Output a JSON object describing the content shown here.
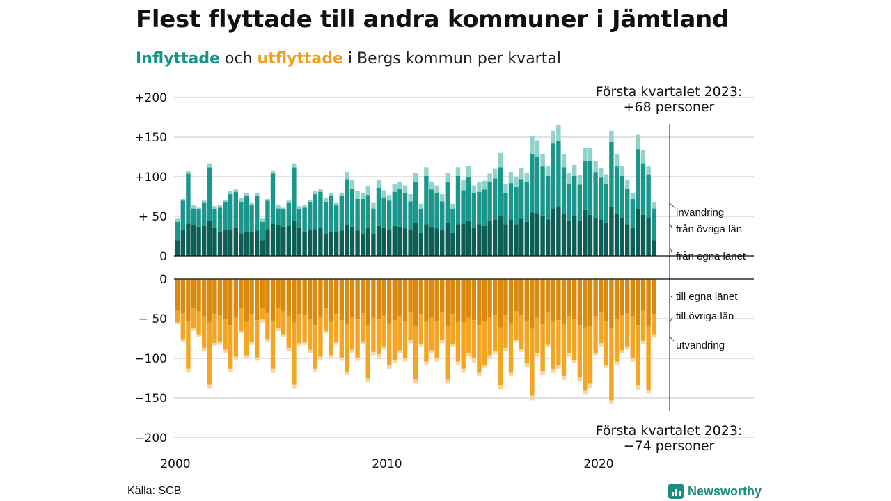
{
  "title": "Flest flyttade till andra kommuner i Jämtland",
  "subtitle": {
    "in_word": "Inflyttade",
    "and_word": "och",
    "out_word": "utflyttade",
    "rest": "i Bergs kommun per kvartal"
  },
  "source": "Källa: SCB",
  "brand": {
    "name": "Newsworthy",
    "icon": "bar-chart-logo-icon"
  },
  "colors": {
    "in_egna": "#0d5e55",
    "in_ovriga": "#1a968a",
    "in_invandring": "#8fd3cb",
    "out_egna": "#d98a0f",
    "out_ovriga": "#f4a524",
    "out_utvandring": "#f8d7a3",
    "grid": "#d9d9d9"
  },
  "chart_data": {
    "type": "bar",
    "stacked": true,
    "x_start": "2000 Q1",
    "x_ticks": [
      {
        "year": 2000,
        "label": "2000"
      },
      {
        "year": 2010,
        "label": "2010"
      },
      {
        "year": 2020,
        "label": "2020"
      }
    ],
    "upper_panel": {
      "ylim": [
        0,
        200
      ],
      "ticks": [
        {
          "v": 200,
          "label": "+200"
        },
        {
          "v": 150,
          "label": "+150"
        },
        {
          "v": 100,
          "label": "+100"
        },
        {
          "v": 50,
          "label": "+ 50"
        },
        {
          "v": 0,
          "label": "0"
        }
      ],
      "series_labels": [
        "invandring",
        "från övriga län",
        "från egna länet"
      ],
      "annotation": [
        "Första kvartalet 2023:",
        "+68 personer"
      ],
      "totals": [
        47,
        72,
        107,
        64,
        61,
        70,
        117,
        63,
        64,
        71,
        82,
        84,
        73,
        79,
        67,
        80,
        47,
        72,
        107,
        64,
        61,
        70,
        117,
        63,
        64,
        71,
        82,
        84,
        73,
        79,
        67,
        80,
        106,
        96,
        82,
        79,
        88,
        67,
        96,
        83,
        77,
        91,
        94,
        89,
        78,
        105,
        66,
        112,
        94,
        89,
        78,
        105,
        66,
        112,
        96,
        114,
        89,
        93,
        95,
        104,
        110,
        130,
        91,
        106,
        100,
        111,
        105,
        151,
        146,
        129,
        114,
        158,
        165,
        128,
        105,
        115,
        102,
        136,
        136,
        120,
        111,
        103,
        158,
        129,
        114,
        96,
        79,
        153,
        134,
        113,
        68
      ],
      "egna": [
        20,
        34,
        41,
        39,
        37,
        38,
        44,
        36,
        31,
        33,
        34,
        36,
        28,
        31,
        30,
        32,
        20,
        34,
        41,
        39,
        37,
        38,
        44,
        36,
        31,
        33,
        34,
        36,
        28,
        31,
        30,
        32,
        39,
        37,
        32,
        28,
        35,
        28,
        38,
        36,
        33,
        38,
        37,
        35,
        33,
        42,
        29,
        40,
        37,
        35,
        33,
        42,
        29,
        40,
        41,
        45,
        36,
        40,
        38,
        44,
        46,
        50,
        40,
        46,
        40,
        47,
        43,
        55,
        54,
        51,
        46,
        60,
        63,
        53,
        45,
        50,
        44,
        58,
        52,
        48,
        46,
        42,
        62,
        53,
        48,
        40,
        36,
        59,
        52,
        48,
        20
      ],
      "ovriga": [
        23,
        36,
        63,
        21,
        22,
        29,
        68,
        23,
        30,
        35,
        44,
        45,
        40,
        45,
        34,
        44,
        23,
        36,
        63,
        21,
        22,
        29,
        68,
        23,
        30,
        35,
        44,
        45,
        40,
        45,
        34,
        44,
        58,
        48,
        40,
        44,
        42,
        32,
        48,
        38,
        37,
        43,
        48,
        44,
        36,
        51,
        30,
        61,
        47,
        44,
        36,
        51,
        30,
        61,
        42,
        55,
        44,
        41,
        46,
        49,
        52,
        62,
        40,
        46,
        47,
        50,
        51,
        74,
        71,
        62,
        55,
        82,
        82,
        59,
        46,
        51,
        46,
        62,
        68,
        58,
        53,
        49,
        82,
        60,
        53,
        45,
        36,
        76,
        65,
        55,
        40
      ]
    },
    "lower_panel": {
      "ylim": [
        -200,
        0
      ],
      "ticks": [
        {
          "v": 0,
          "label": "0"
        },
        {
          "v": -50,
          "label": "− 50"
        },
        {
          "v": -100,
          "label": "−100"
        },
        {
          "v": -150,
          "label": "−150"
        },
        {
          "v": -200,
          "label": "−200"
        }
      ],
      "series_labels": [
        "till egna länet",
        "till övriga län",
        "utvandring"
      ],
      "annotation": [
        "Första kvartalet 2023:",
        "−74 personer"
      ],
      "totals": [
        -57,
        -79,
        -118,
        -65,
        -73,
        -91,
        -138,
        -84,
        -83,
        -93,
        -117,
        -102,
        -68,
        -100,
        -83,
        -103,
        -55,
        -79,
        -118,
        -65,
        -73,
        -91,
        -138,
        -84,
        -83,
        -93,
        -117,
        -102,
        -68,
        -100,
        -83,
        -103,
        -121,
        -93,
        -103,
        -82,
        -130,
        -96,
        -100,
        -89,
        -113,
        -106,
        -94,
        -104,
        -81,
        -132,
        -85,
        -108,
        -94,
        -104,
        -81,
        -132,
        -85,
        -108,
        -118,
        -98,
        -105,
        -123,
        -112,
        -100,
        -95,
        -139,
        -91,
        -123,
        -80,
        -92,
        -111,
        -153,
        -98,
        -121,
        -86,
        -118,
        -113,
        -127,
        -98,
        -106,
        -129,
        -145,
        -137,
        -96,
        -85,
        -112,
        -157,
        -108,
        -94,
        -89,
        -104,
        -140,
        -82,
        -144,
        -74
      ],
      "egna": [
        -40,
        -43,
        -53,
        -36,
        -41,
        -47,
        -55,
        -44,
        -45,
        -50,
        -58,
        -48,
        -37,
        -54,
        -44,
        -52,
        -36,
        -43,
        -53,
        -36,
        -41,
        -47,
        -55,
        -44,
        -45,
        -50,
        -58,
        -48,
        -37,
        -54,
        -44,
        -52,
        -57,
        -48,
        -51,
        -43,
        -58,
        -49,
        -51,
        -46,
        -56,
        -52,
        -47,
        -53,
        -42,
        -59,
        -44,
        -54,
        -49,
        -53,
        -42,
        -59,
        -44,
        -54,
        -55,
        -49,
        -52,
        -58,
        -53,
        -49,
        -46,
        -61,
        -45,
        -56,
        -41,
        -45,
        -53,
        -63,
        -49,
        -57,
        -42,
        -54,
        -52,
        -57,
        -47,
        -50,
        -58,
        -61,
        -59,
        -47,
        -42,
        -53,
        -62,
        -50,
        -45,
        -43,
        -47,
        -58,
        -40,
        -60,
        -44
      ],
      "ovriga": [
        -15,
        -33,
        -60,
        -26,
        -29,
        -40,
        -78,
        -37,
        -35,
        -39,
        -55,
        -50,
        -28,
        -42,
        -35,
        -47,
        -15,
        -33,
        -60,
        -26,
        -29,
        -40,
        -78,
        -37,
        -35,
        -39,
        -55,
        -50,
        -28,
        -42,
        -35,
        -47,
        -60,
        -41,
        -48,
        -36,
        -67,
        -43,
        -44,
        -39,
        -52,
        -50,
        -43,
        -47,
        -35,
        -68,
        -38,
        -50,
        -41,
        -47,
        -35,
        -68,
        -38,
        -50,
        -58,
        -45,
        -48,
        -60,
        -55,
        -47,
        -45,
        -73,
        -42,
        -62,
        -36,
        -43,
        -53,
        -84,
        -45,
        -59,
        -41,
        -60,
        -56,
        -65,
        -47,
        -52,
        -66,
        -80,
        -73,
        -46,
        -39,
        -55,
        -91,
        -54,
        -45,
        -42,
        -53,
        -76,
        -38,
        -80,
        -26
      ]
    }
  }
}
